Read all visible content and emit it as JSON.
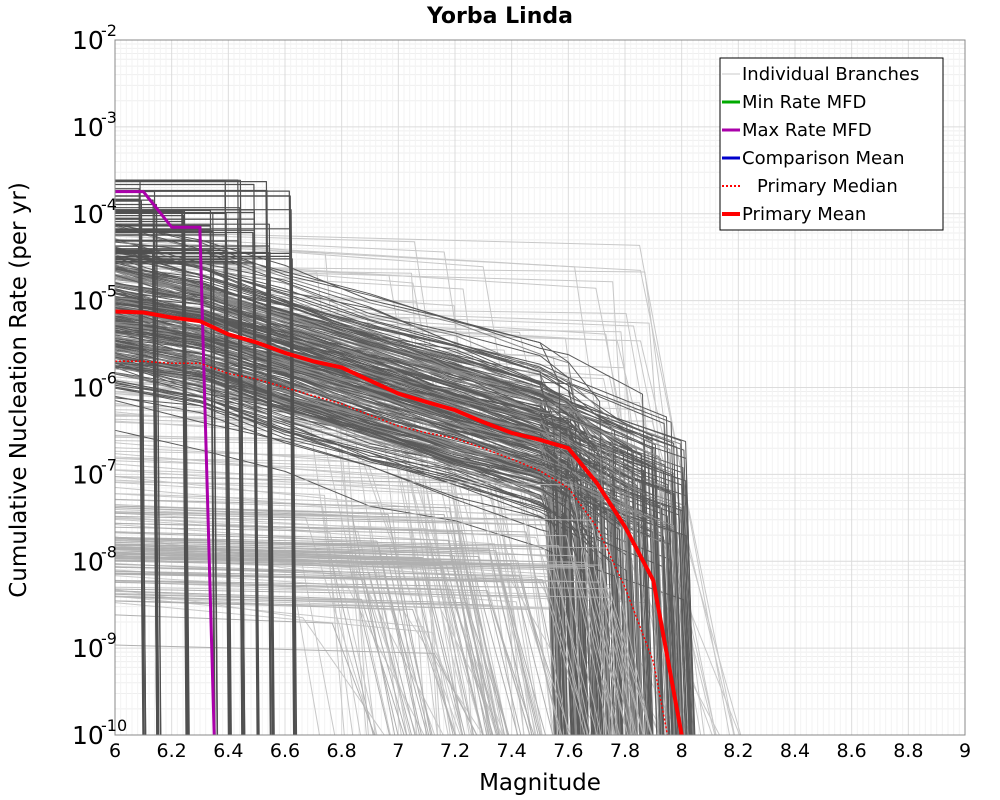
{
  "chart_data": {
    "type": "line",
    "title": "Yorba Linda",
    "xlabel": "Magnitude",
    "ylabel": "Cumulative Nucleation Rate (per yr)",
    "xlim": [
      6,
      9
    ],
    "ylim_log10": [
      -10,
      -2
    ],
    "yscale": "log",
    "x_ticks": [
      "6",
      "6.2",
      "6.4",
      "6.6",
      "6.8",
      "7",
      "7.2",
      "7.4",
      "7.6",
      "7.8",
      "8",
      "8.2",
      "8.4",
      "8.6",
      "8.8",
      "9"
    ],
    "y_ticks": [
      {
        "base": "10",
        "exp": "-2"
      },
      {
        "base": "10",
        "exp": "-3"
      },
      {
        "base": "10",
        "exp": "-4"
      },
      {
        "base": "10",
        "exp": "-5"
      },
      {
        "base": "10",
        "exp": "-6"
      },
      {
        "base": "10",
        "exp": "-7"
      },
      {
        "base": "10",
        "exp": "-8"
      },
      {
        "base": "10",
        "exp": "-9"
      },
      {
        "base": "10",
        "exp": "-10"
      }
    ],
    "grid": true,
    "legend_position": "top-right",
    "legend": [
      {
        "label": "Individual Branches",
        "color": "#c8c8c8",
        "style": "solid",
        "width": 1
      },
      {
        "label": "Min Rate MFD",
        "color": "#00aa00",
        "style": "solid",
        "width": 3
      },
      {
        "label": "Max Rate MFD",
        "color": "#aa00aa",
        "style": "solid",
        "width": 3
      },
      {
        "label": "Comparison Mean",
        "color": "#0000cc",
        "style": "solid",
        "width": 3
      },
      {
        "label": "Primary Median",
        "color": "#ff0000",
        "style": "dotted",
        "width": 2
      },
      {
        "label": "Primary Mean",
        "color": "#ff0000",
        "style": "solid",
        "width": 4
      }
    ],
    "series": [
      {
        "name": "Max Rate MFD",
        "color": "#aa00aa",
        "x": [
          6.0,
          6.1,
          6.2,
          6.3,
          6.3,
          6.35
        ],
        "y": [
          0.00018,
          0.00018,
          7e-05,
          7e-05,
          6e-05,
          1e-10
        ]
      },
      {
        "name": "Primary Median",
        "color": "#ff0000",
        "x": [
          6.0,
          6.1,
          6.2,
          6.3,
          6.4,
          6.5,
          6.6,
          6.7,
          6.8,
          6.9,
          7.0,
          7.1,
          7.2,
          7.3,
          7.4,
          7.5,
          7.6,
          7.7,
          7.8,
          7.9,
          7.95
        ],
        "y": [
          2e-06,
          2e-06,
          1.9e-06,
          1.9e-06,
          1.45e-06,
          1.25e-06,
          1e-06,
          8e-07,
          6.5e-07,
          4.8e-07,
          3.6e-07,
          3e-07,
          2.6e-07,
          2e-07,
          1.5e-07,
          1.1e-07,
          7e-08,
          2.5e-08,
          5e-09,
          7e-10,
          1e-10
        ]
      },
      {
        "name": "Primary Mean",
        "color": "#ff0000",
        "x": [
          6.0,
          6.1,
          6.2,
          6.3,
          6.4,
          6.5,
          6.6,
          6.7,
          6.8,
          6.9,
          7.0,
          7.1,
          7.2,
          7.3,
          7.4,
          7.5,
          7.6,
          7.7,
          7.8,
          7.9,
          8.0
        ],
        "y": [
          7.5e-06,
          7.3e-06,
          6.4e-06,
          5.8e-06,
          4.1e-06,
          3.3e-06,
          2.5e-06,
          2e-06,
          1.7e-06,
          1.2e-06,
          8.5e-07,
          6.8e-07,
          5.5e-07,
          4e-07,
          3e-07,
          2.5e-07,
          2e-07,
          8e-08,
          2.5e-08,
          6e-09,
          1e-10
        ]
      }
    ]
  }
}
